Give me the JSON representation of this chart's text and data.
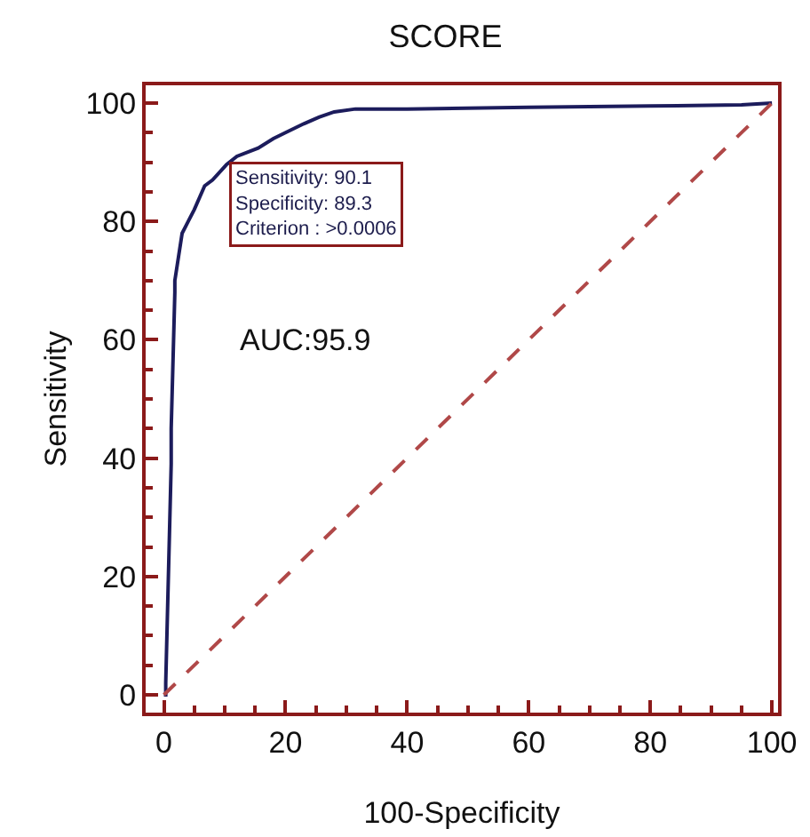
{
  "chart_data": {
    "type": "line",
    "title": "SCORE",
    "xlabel": "100-Specificity",
    "ylabel": "Sensitivity",
    "xlim": [
      -3,
      101
    ],
    "ylim": [
      -3,
      103
    ],
    "xticks": [
      0,
      20,
      40,
      60,
      80,
      100
    ],
    "yticks": [
      0,
      20,
      40,
      60,
      80,
      100
    ],
    "grid": false,
    "series": [
      {
        "color": "#1c1c5c",
        "line_style": "solid",
        "x": [
          0,
          0.3,
          0.3,
          1.2,
          1.2,
          1.8,
          1.8,
          3,
          4,
          5,
          6.7,
          8,
          10.3,
          12,
          15.5,
          18,
          20,
          23,
          25.5,
          28,
          31.5,
          40,
          60,
          80,
          95,
          100
        ],
        "values": [
          0,
          0,
          2,
          39,
          45,
          68,
          70,
          78,
          80,
          82,
          86,
          87,
          89.6,
          91,
          92.4,
          94,
          95,
          96.5,
          97.6,
          98.5,
          99,
          99,
          99.3,
          99.5,
          99.7,
          100
        ]
      },
      {
        "color": "#b04848",
        "line_style": "dashed",
        "x": [
          0,
          100
        ],
        "values": [
          0,
          100
        ]
      }
    ],
    "annotations": [
      {
        "text": "Sensitivity: 90.1\nSpecificity: 89.3\nCriterion : >0.0006",
        "x": 10.7,
        "y": 90.1
      },
      "AUC:95.9"
    ]
  }
}
